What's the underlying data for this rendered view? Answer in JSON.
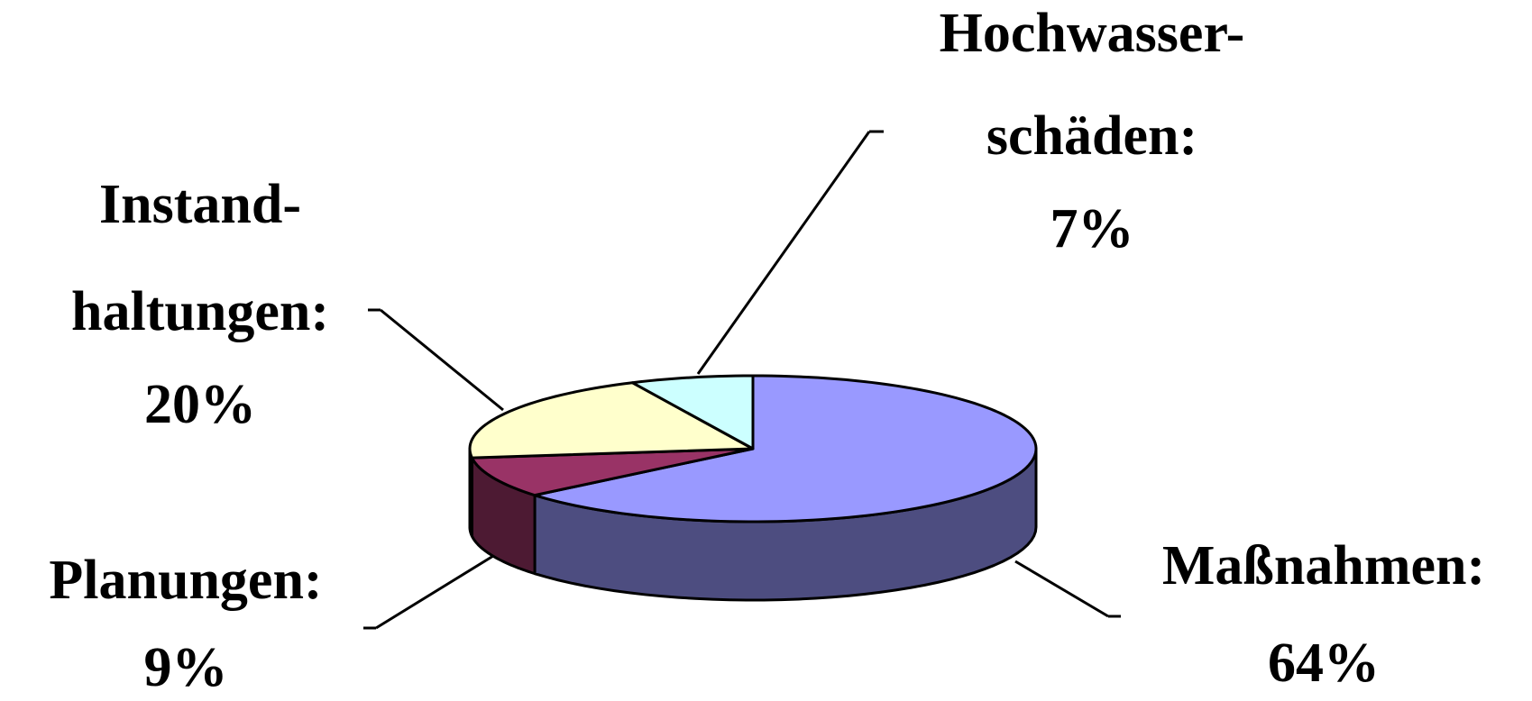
{
  "chart_data": {
    "type": "pie3d",
    "categories": [
      [
        "Maßnahmen:"
      ],
      [
        "Planungen:"
      ],
      [
        "Instand-",
        "haltungen:"
      ],
      [
        "Hochwasser-",
        "schäden:"
      ]
    ],
    "values": [
      64,
      9,
      20,
      7
    ],
    "value_labels": [
      "64%",
      "9%",
      "20%",
      "7%"
    ],
    "colors": [
      "#9999ff",
      "#993366",
      "#ffffcc",
      "#ccffff"
    ]
  }
}
